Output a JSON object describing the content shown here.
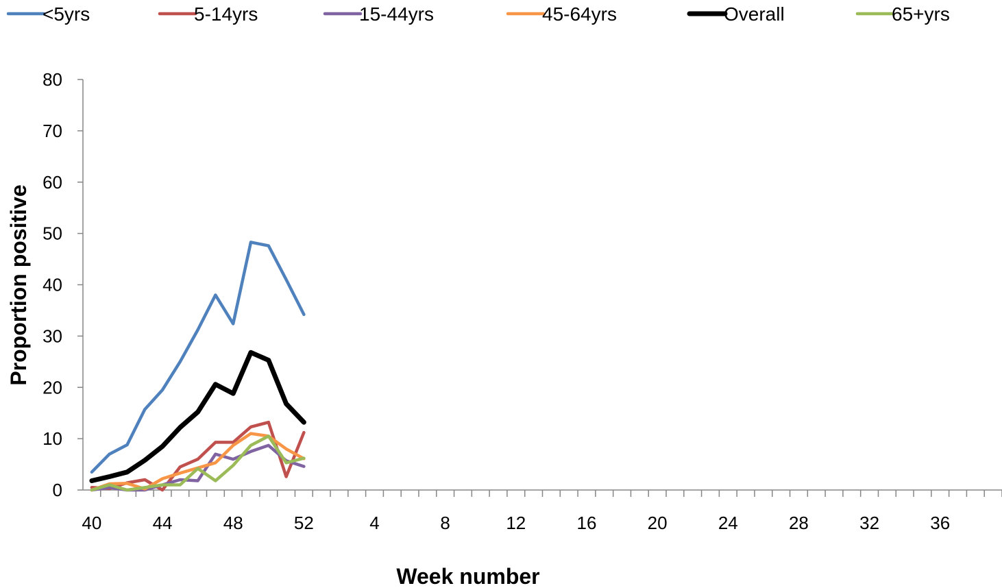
{
  "chart_data": {
    "type": "line",
    "title": "",
    "xlabel": "Week number",
    "ylabel": "Proportion positive",
    "ylim": [
      0,
      80
    ],
    "y_ticks": [
      0,
      10,
      20,
      30,
      40,
      50,
      60,
      70,
      80
    ],
    "x_categories": [
      40,
      41,
      42,
      43,
      44,
      45,
      46,
      47,
      48,
      49,
      50,
      51,
      52,
      1,
      2,
      3,
      4,
      5,
      6,
      7,
      8,
      9,
      10,
      11,
      12,
      13,
      14,
      15,
      16,
      17,
      18,
      19,
      20,
      21,
      22,
      23,
      24,
      25,
      26,
      27,
      28,
      29,
      30,
      31,
      32,
      33,
      34,
      35,
      36,
      37,
      38,
      39
    ],
    "x_tick_labels": [
      "40",
      "44",
      "48",
      "52",
      "4",
      "8",
      "12",
      "16",
      "20",
      "24",
      "28",
      "32",
      "36"
    ],
    "grid": false,
    "legend_position": "top",
    "series": [
      {
        "name": "<5yrs",
        "color": "#4F81BD",
        "values": [
          3.5,
          7.0,
          8.8,
          15.7,
          19.5,
          25.0,
          31.2,
          38.0,
          32.4,
          48.3,
          47.6,
          41.0,
          34.2
        ]
      },
      {
        "name": "5-14yrs",
        "color": "#C0504D",
        "values": [
          0.5,
          0.3,
          1.4,
          2.0,
          0.0,
          4.5,
          6.0,
          9.3,
          9.3,
          12.3,
          13.2,
          2.6,
          11.2
        ]
      },
      {
        "name": "15-44yrs",
        "color": "#8064A2",
        "values": [
          0.0,
          0.5,
          0.0,
          0.0,
          1.0,
          2.0,
          1.8,
          7.0,
          6.0,
          7.5,
          8.7,
          5.7,
          4.6
        ]
      },
      {
        "name": "45-64yrs",
        "color": "#F79646",
        "values": [
          0.0,
          1.2,
          1.3,
          0.2,
          2.2,
          3.3,
          4.3,
          5.3,
          8.7,
          11.0,
          10.5,
          8.0,
          6.1
        ]
      },
      {
        "name": "Overall",
        "color": "#000000",
        "values": [
          1.8,
          2.6,
          3.5,
          5.8,
          8.5,
          12.2,
          15.2,
          20.6,
          18.8,
          26.8,
          25.3,
          16.8,
          13.2
        ]
      },
      {
        "name": "65+yrs",
        "color": "#9BBB59",
        "values": [
          0.0,
          1.0,
          0.0,
          0.5,
          1.0,
          1.0,
          4.2,
          1.8,
          4.8,
          8.7,
          10.5,
          5.3,
          6.2
        ]
      }
    ]
  }
}
